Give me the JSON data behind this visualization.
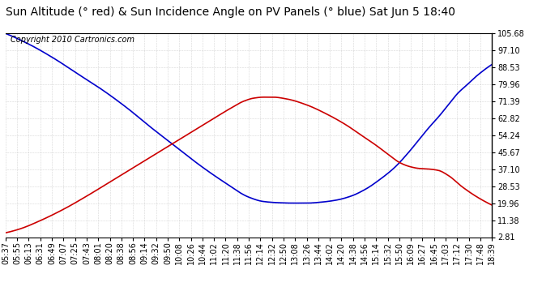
{
  "title": "Sun Altitude (° red) & Sun Incidence Angle on PV Panels (° blue) Sat Jun 5 18:40",
  "copyright": "Copyright 2010 Cartronics.com",
  "y_ticks": [
    2.81,
    11.38,
    19.96,
    28.53,
    37.1,
    45.67,
    54.24,
    62.82,
    71.39,
    79.96,
    88.53,
    97.1,
    105.68
  ],
  "y_min": 2.81,
  "y_max": 105.68,
  "x_labels": [
    "05:37",
    "05:55",
    "06:13",
    "06:31",
    "06:49",
    "07:07",
    "07:25",
    "07:43",
    "08:01",
    "08:20",
    "08:38",
    "08:56",
    "09:14",
    "09:32",
    "09:50",
    "10:08",
    "10:26",
    "10:44",
    "11:02",
    "11:20",
    "11:38",
    "11:56",
    "12:14",
    "12:32",
    "12:50",
    "13:08",
    "13:26",
    "13:44",
    "14:02",
    "14:20",
    "14:38",
    "14:56",
    "15:14",
    "15:32",
    "15:50",
    "16:09",
    "16:27",
    "16:45",
    "17:03",
    "17:12",
    "17:30",
    "17:48",
    "18:39"
  ],
  "background_color": "#ffffff",
  "plot_bg_color": "#ffffff",
  "grid_color": "#aaaaaa",
  "blue_color": "#0000cc",
  "red_color": "#cc0000",
  "title_fontsize": 10,
  "copyright_fontsize": 7,
  "tick_fontsize": 7,
  "blue_points_x": [
    0.0,
    0.05,
    0.1,
    0.15,
    0.2,
    0.25,
    0.3,
    0.35,
    0.4,
    0.45,
    0.5,
    0.53,
    0.56,
    0.59,
    0.62,
    0.65,
    0.68,
    0.71,
    0.74,
    0.77,
    0.8,
    0.83,
    0.85,
    0.87,
    0.89,
    0.91,
    0.93,
    0.95,
    0.97,
    1.0
  ],
  "blue_points_y": [
    105.68,
    100.0,
    93.0,
    85.0,
    77.0,
    68.0,
    58.0,
    48.5,
    39.0,
    30.5,
    23.0,
    20.8,
    20.2,
    20.0,
    20.0,
    20.5,
    21.5,
    23.5,
    27.0,
    32.0,
    38.0,
    46.0,
    52.0,
    58.0,
    63.5,
    69.5,
    75.5,
    80.0,
    84.5,
    90.0
  ],
  "red_points_x": [
    0.0,
    0.03,
    0.07,
    0.12,
    0.17,
    0.22,
    0.27,
    0.32,
    0.37,
    0.42,
    0.46,
    0.49,
    0.51,
    0.53,
    0.55,
    0.58,
    0.62,
    0.66,
    0.7,
    0.73,
    0.76,
    0.79,
    0.81,
    0.83,
    0.85,
    0.87,
    0.89,
    0.91,
    0.94,
    0.97,
    1.0
  ],
  "red_points_y": [
    5.0,
    7.0,
    11.0,
    17.0,
    24.0,
    31.5,
    39.0,
    46.5,
    54.0,
    61.5,
    67.5,
    71.5,
    73.0,
    73.5,
    73.5,
    72.5,
    69.5,
    65.0,
    59.5,
    54.5,
    49.5,
    44.0,
    40.5,
    38.5,
    37.5,
    37.2,
    36.5,
    34.0,
    28.0,
    23.0,
    19.0
  ]
}
